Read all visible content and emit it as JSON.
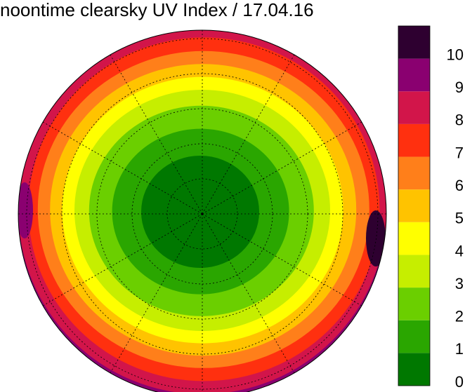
{
  "chart_data": {
    "type": "polar-map",
    "title": "noontime clearsky UV Index / 17.04.16",
    "colorbar": {
      "lim": [
        0,
        11
      ],
      "ticks": [
        0,
        1,
        2,
        3,
        4,
        5,
        6,
        7,
        8,
        9,
        10
      ],
      "colors": [
        "#007800",
        "#2aa600",
        "#6bcf00",
        "#c6ee00",
        "#ffff00",
        "#ffc300",
        "#ff7f1a",
        "#ff300f",
        "#d2154a",
        "#8a0070",
        "#2e0030"
      ]
    }
  }
}
